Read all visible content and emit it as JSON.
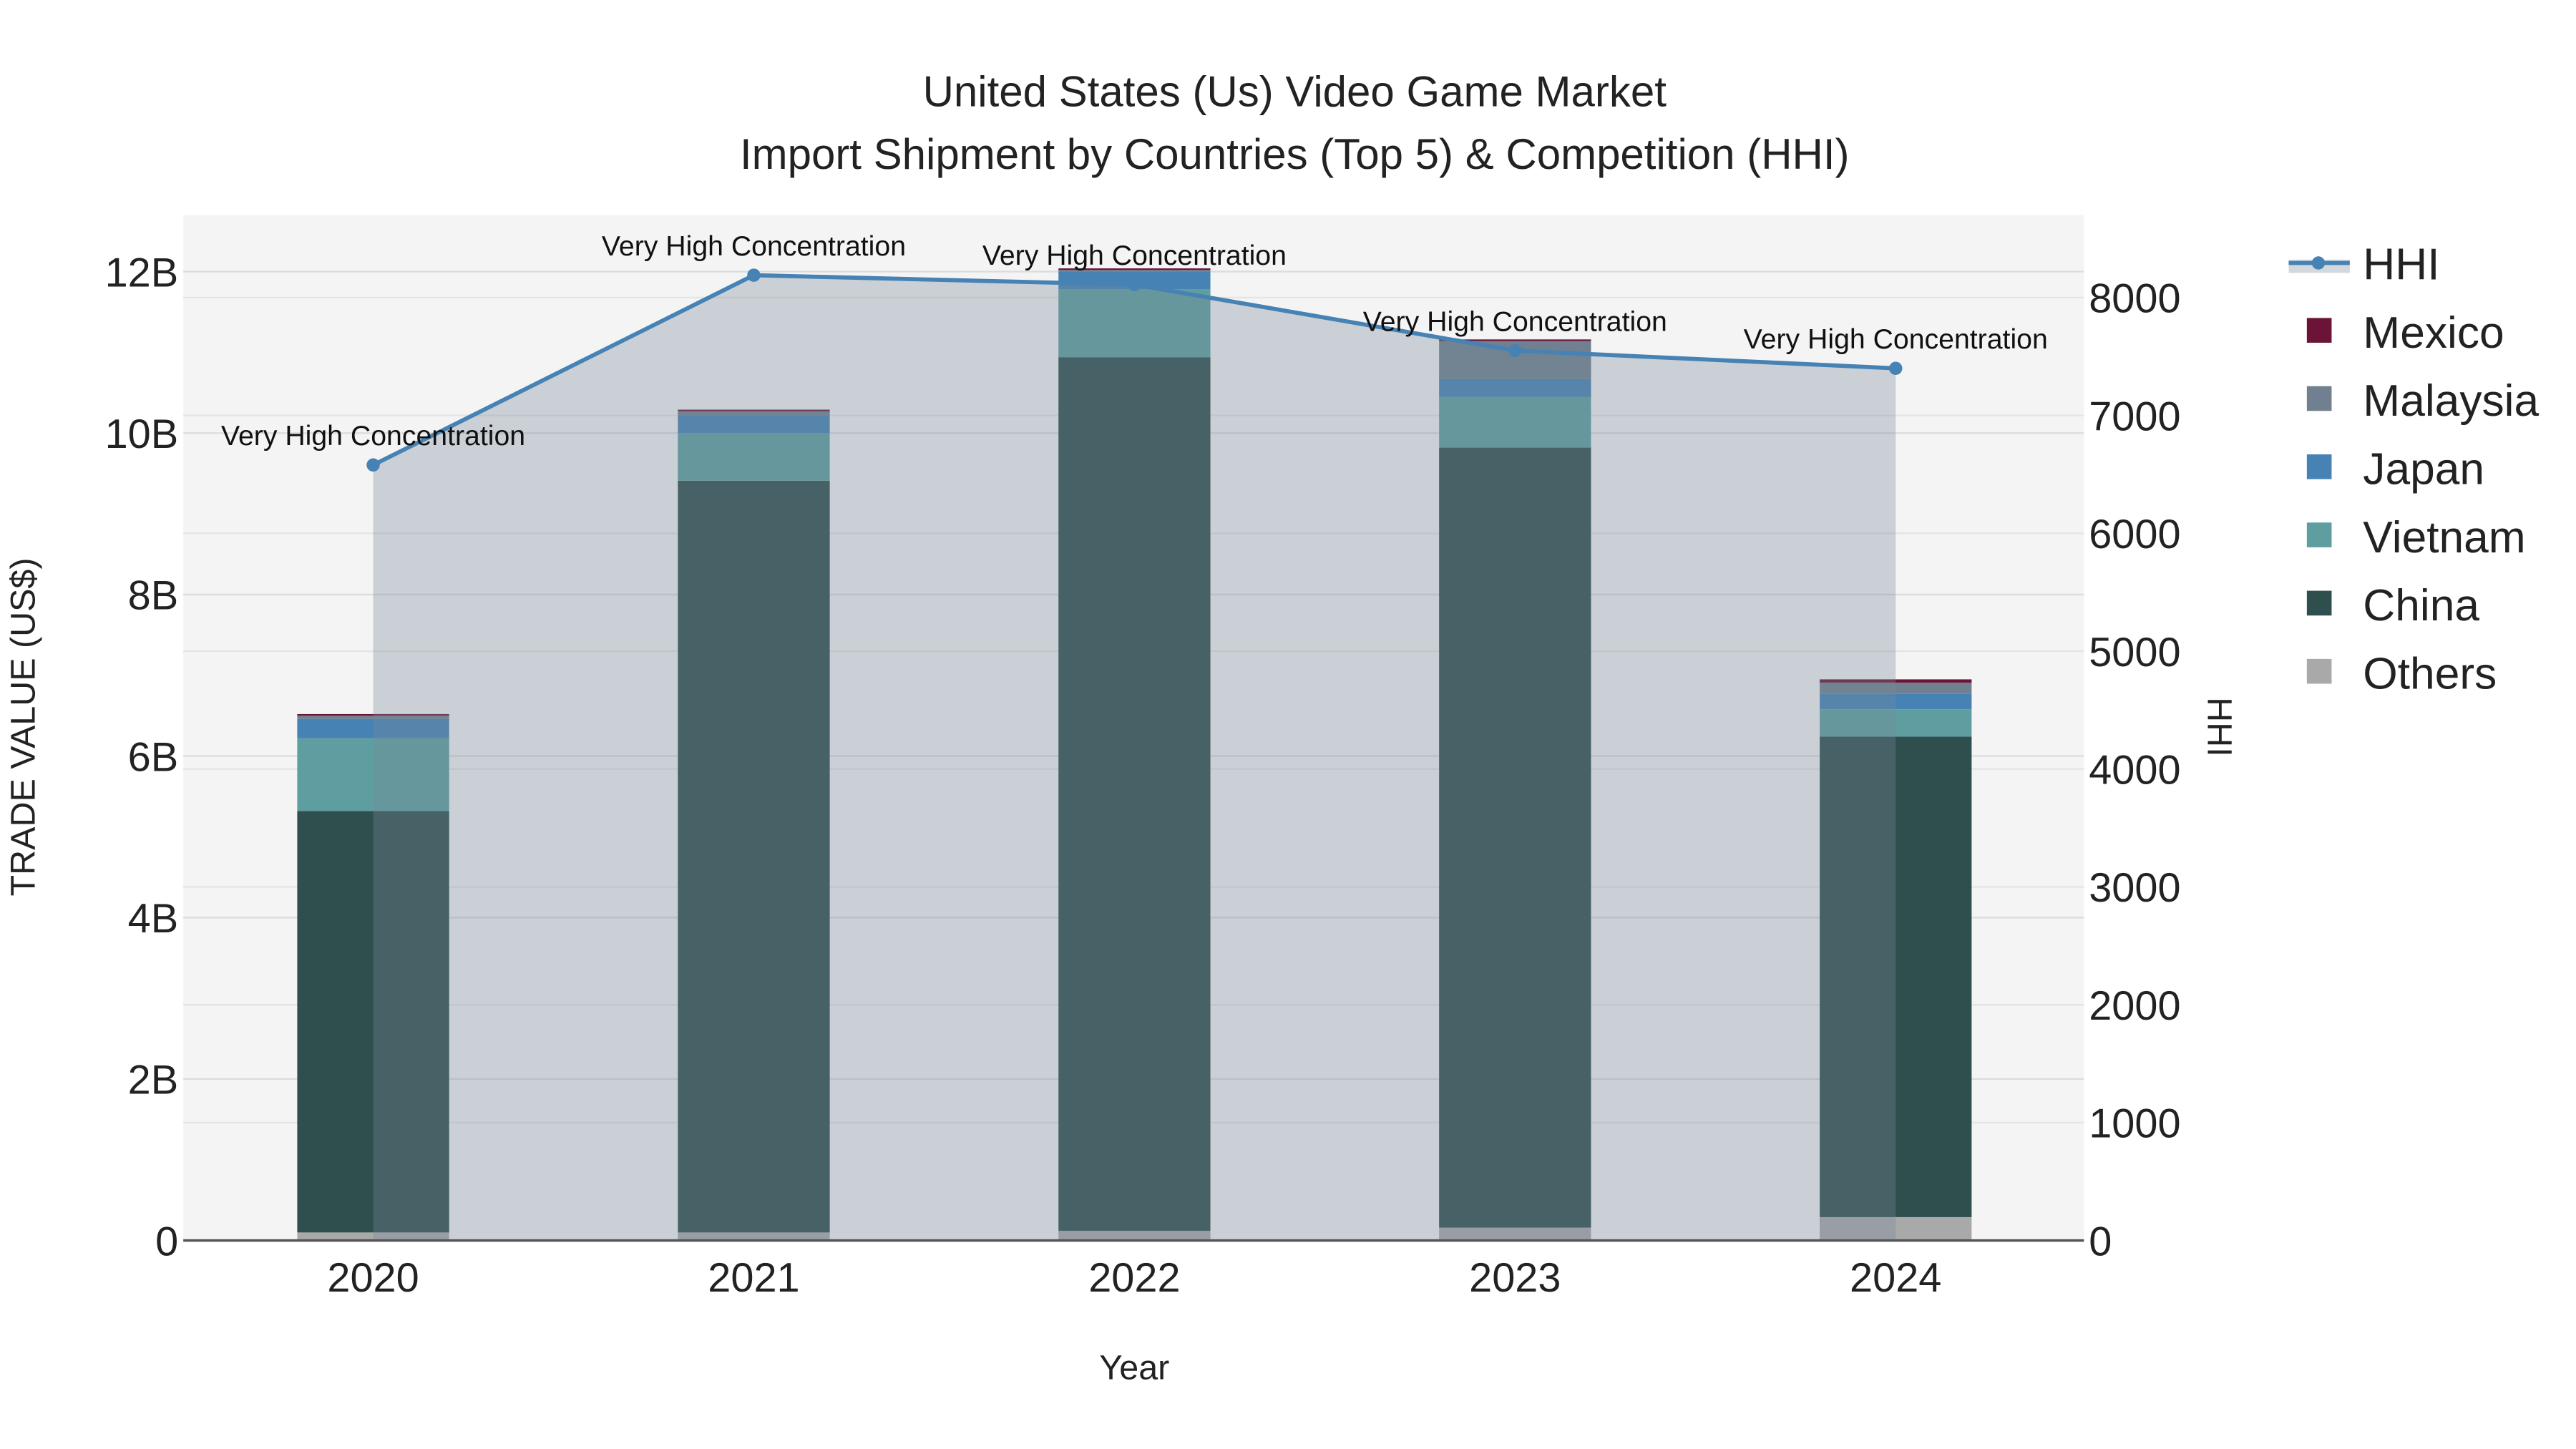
{
  "chart_data": {
    "type": "bar",
    "title_line1": "United States (Us) Video Game Market",
    "title_line2": "Import Shipment by Countries (Top 5) & Competition (HHI)",
    "xlabel": "Year",
    "ylabel": "TRADE VALUE (US$)",
    "y2label": "HHI",
    "categories": [
      "2020",
      "2021",
      "2022",
      "2023",
      "2024"
    ],
    "ylim": [
      0,
      12700000000
    ],
    "y2lim": [
      0,
      8700
    ],
    "yticks": [
      0,
      2000000000,
      4000000000,
      6000000000,
      8000000000,
      10000000000,
      12000000000
    ],
    "ytick_labels": [
      "0",
      "2B",
      "4B",
      "6B",
      "8B",
      "10B",
      "12B"
    ],
    "y2ticks": [
      0,
      1000,
      2000,
      3000,
      4000,
      5000,
      6000,
      7000,
      8000
    ],
    "y2tick_labels": [
      "0",
      "1000",
      "2000",
      "3000",
      "4000",
      "5000",
      "6000",
      "7000",
      "8000"
    ],
    "grid": true,
    "legend_position": "right",
    "series": [
      {
        "name": "Others",
        "color": "#a9a9a9",
        "values": [
          100000000,
          100000000,
          120000000,
          160000000,
          290000000
        ]
      },
      {
        "name": "China",
        "color": "#2f4f4f",
        "values": [
          5220000000,
          9310000000,
          10820000000,
          9660000000,
          5950000000
        ]
      },
      {
        "name": "Vietnam",
        "color": "#5f9ea0",
        "values": [
          900000000,
          590000000,
          840000000,
          630000000,
          340000000
        ]
      },
      {
        "name": "Japan",
        "color": "#4682b4",
        "values": [
          240000000,
          220000000,
          220000000,
          220000000,
          190000000
        ]
      },
      {
        "name": "Malaysia",
        "color": "#708090",
        "values": [
          40000000,
          50000000,
          20000000,
          470000000,
          140000000
        ]
      },
      {
        "name": "Mexico",
        "color": "#6b1438",
        "values": [
          20000000,
          20000000,
          20000000,
          20000000,
          40000000
        ]
      }
    ],
    "hhi": {
      "name": "HHI",
      "color": "#4682b4",
      "values": [
        6580,
        8190,
        8110,
        7550,
        7400
      ],
      "annotations": [
        "Very High Concentration",
        "Very High Concentration",
        "Very High Concentration",
        "Very High Concentration",
        "Very High Concentration"
      ]
    },
    "legend_order": [
      "HHI",
      "Mexico",
      "Malaysia",
      "Japan",
      "Vietnam",
      "China",
      "Others"
    ]
  }
}
